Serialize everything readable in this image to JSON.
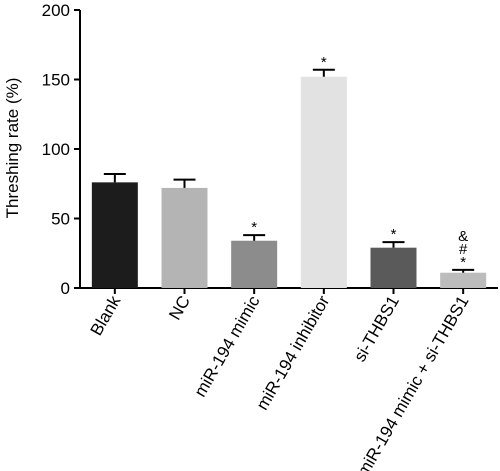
{
  "chart_data": {
    "type": "bar",
    "title": "",
    "xlabel": "",
    "ylabel": "Threshing rate (%)",
    "ylim": [
      0,
      200
    ],
    "yticks": [
      0,
      50,
      100,
      150,
      200
    ],
    "grid": false,
    "categories": [
      "Blank",
      "NC",
      "miR-194 mimic",
      "miR-194 inhibitor",
      "si-THBS1",
      "miR-194 mimic + si-THBS1"
    ],
    "values": [
      76,
      72,
      34,
      152,
      29,
      11
    ],
    "errors": [
      6,
      6,
      4,
      5,
      4,
      2
    ],
    "annotations": [
      [],
      [],
      [
        "*"
      ],
      [
        "*"
      ],
      [
        "*"
      ],
      [
        "&",
        "#",
        "*"
      ]
    ],
    "colors": [
      "#1c1c1c",
      "#b4b4b4",
      "#8c8c8c",
      "#e2e2e2",
      "#5a5a5a",
      "#bcbcbc"
    ]
  }
}
